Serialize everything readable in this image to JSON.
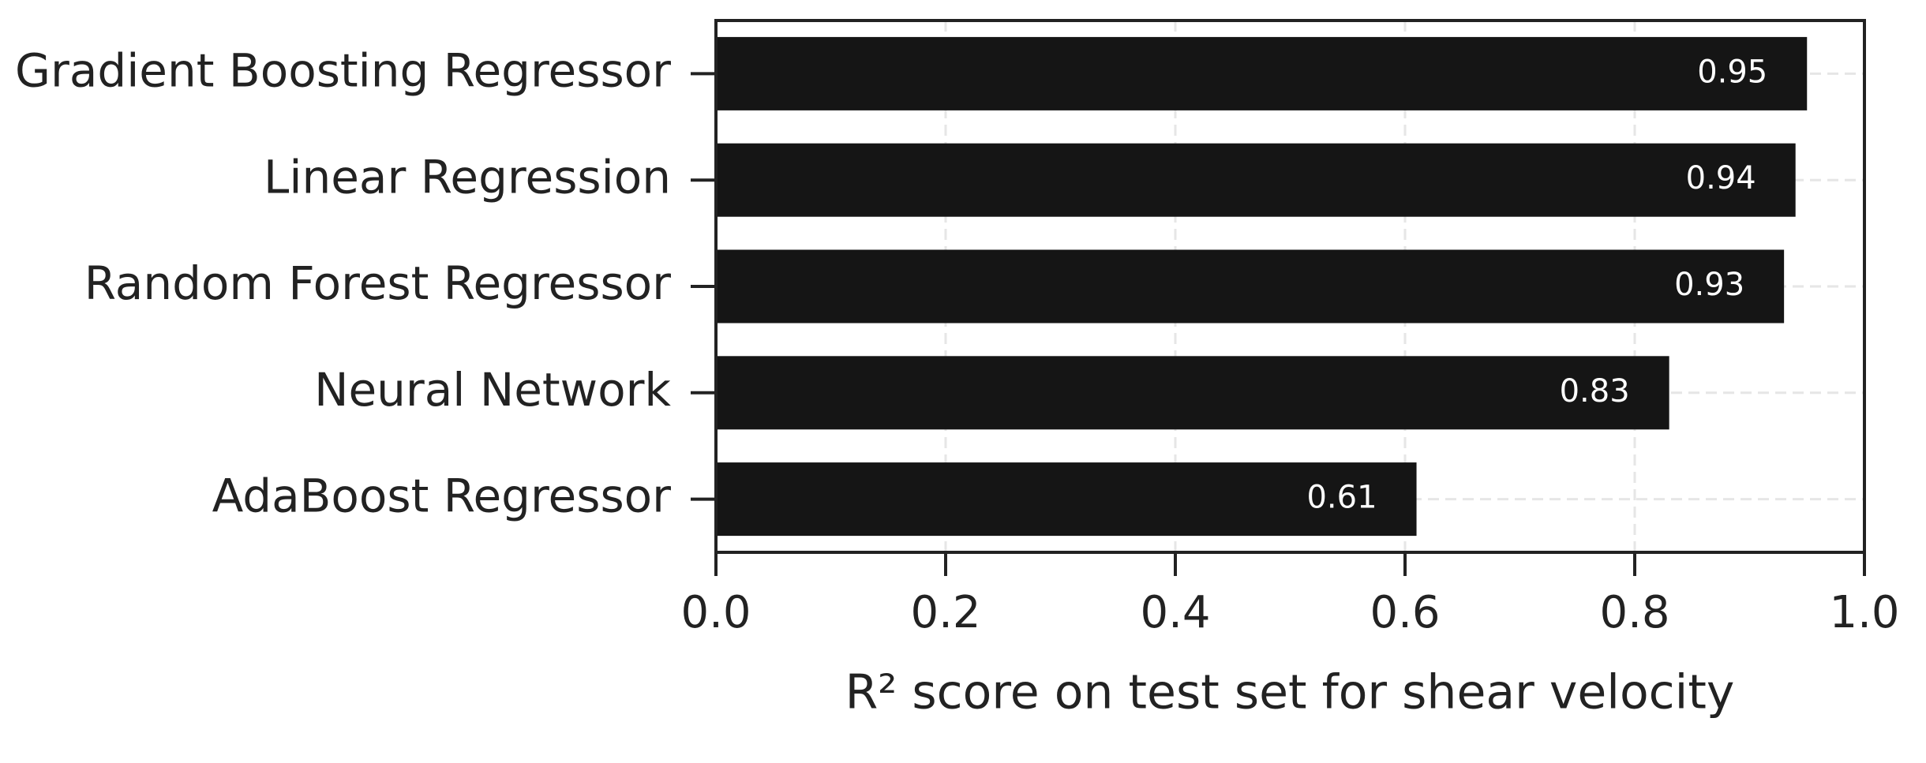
{
  "chart_data": {
    "type": "barh",
    "categories": [
      "Gradient Boosting Regressor",
      "Linear Regression",
      "Random Forest Regressor",
      "Neural Network",
      "AdaBoost Regressor"
    ],
    "values": [
      0.95,
      0.94,
      0.93,
      0.83,
      0.61
    ],
    "color": "#151515",
    "xlabel": "R² score on test set for shear velocity",
    "xlim": [
      0,
      1
    ],
    "xticks": [
      {
        "value": 0,
        "label": "0.0"
      },
      0.2,
      0.4,
      0.6,
      0.8,
      {
        "value": 1,
        "label": "1.0"
      }
    ],
    "grid": true
  }
}
